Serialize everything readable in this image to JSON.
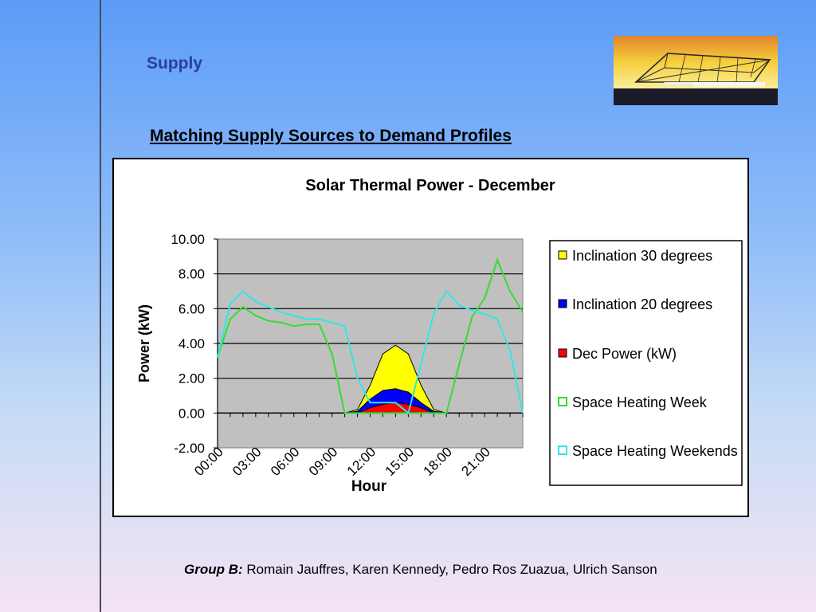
{
  "slide": {
    "title": "Supply",
    "subtitle": "Matching Supply Sources to Demand Profiles",
    "footer_group": "Group B:",
    "footer_names": "Romain Jauffres, Karen Kennedy, Pedro Ros Zuazua, Ulrich Sanson"
  },
  "colors": {
    "title": "#2a3f9e",
    "plot_bg": "#c0c0c0",
    "inclination30": "#ffff00",
    "inclination20": "#0000ff",
    "dec_power": "#ff0000",
    "space_heating_week": "#33dd33",
    "space_heating_weekends": "#33e5e5"
  },
  "chart_data": {
    "type": "area",
    "title": "Solar Thermal Power - December",
    "xlabel": "Hour",
    "ylabel": "Power (kW)",
    "ylim": [
      -2,
      10
    ],
    "yticks": [
      "10.00",
      "8.00",
      "6.00",
      "4.00",
      "2.00",
      "0.00",
      "-2.00"
    ],
    "xtick_labels": [
      "00:00",
      "03:00",
      "06:00",
      "09:00",
      "12:00",
      "15:00",
      "18:00",
      "21:00"
    ],
    "grid": true,
    "legend_position": "right",
    "x": [
      "00:00",
      "01:00",
      "02:00",
      "03:00",
      "04:00",
      "05:00",
      "06:00",
      "07:00",
      "08:00",
      "09:00",
      "10:00",
      "11:00",
      "12:00",
      "13:00",
      "14:00",
      "15:00",
      "16:00",
      "17:00",
      "18:00",
      "19:00",
      "20:00",
      "21:00",
      "22:00",
      "23:00",
      "24:00"
    ],
    "series": [
      {
        "name": "Inclination 30 degrees",
        "kind": "area",
        "color": "#ffff00",
        "values": [
          0,
          0,
          0,
          0,
          0,
          0,
          0,
          0,
          0,
          0,
          0,
          0.2,
          1.6,
          3.4,
          3.9,
          3.4,
          1.6,
          0.2,
          0,
          0,
          0,
          0,
          0,
          0,
          0
        ]
      },
      {
        "name": "Inclination 20 degrees",
        "kind": "area",
        "color": "#0000ff",
        "values": [
          0,
          0,
          0,
          0,
          0,
          0,
          0,
          0,
          0,
          0,
          0,
          0.1,
          0.8,
          1.3,
          1.4,
          1.2,
          0.6,
          0.1,
          0,
          0,
          0,
          0,
          0,
          0,
          0
        ]
      },
      {
        "name": "Dec Power (kW)",
        "kind": "area",
        "color": "#ff0000",
        "values": [
          0,
          0,
          0,
          0,
          0,
          0,
          0,
          0,
          0,
          0,
          0,
          0,
          0.3,
          0.5,
          0.6,
          0.5,
          0.3,
          0,
          0,
          0,
          0,
          0,
          0,
          0,
          0
        ]
      },
      {
        "name": "Space Heating Week",
        "kind": "line",
        "color": "#33dd33",
        "values": [
          3.2,
          5.4,
          6.1,
          5.6,
          5.3,
          5.2,
          5.0,
          5.1,
          5.1,
          3.4,
          0,
          0,
          0,
          0,
          0,
          0,
          0,
          0,
          0,
          2.8,
          5.5,
          6.6,
          8.8,
          7.0,
          5.8
        ]
      },
      {
        "name": "Space Heating Weekends",
        "kind": "line",
        "color": "#33e5e5",
        "values": [
          3.2,
          6.3,
          7.0,
          6.4,
          6.1,
          5.8,
          5.6,
          5.4,
          5.4,
          5.2,
          5.0,
          2.0,
          0.6,
          0.6,
          0.6,
          0,
          2.8,
          5.7,
          7.0,
          6.2,
          5.9,
          5.7,
          5.4,
          3.6,
          0
        ]
      }
    ]
  }
}
